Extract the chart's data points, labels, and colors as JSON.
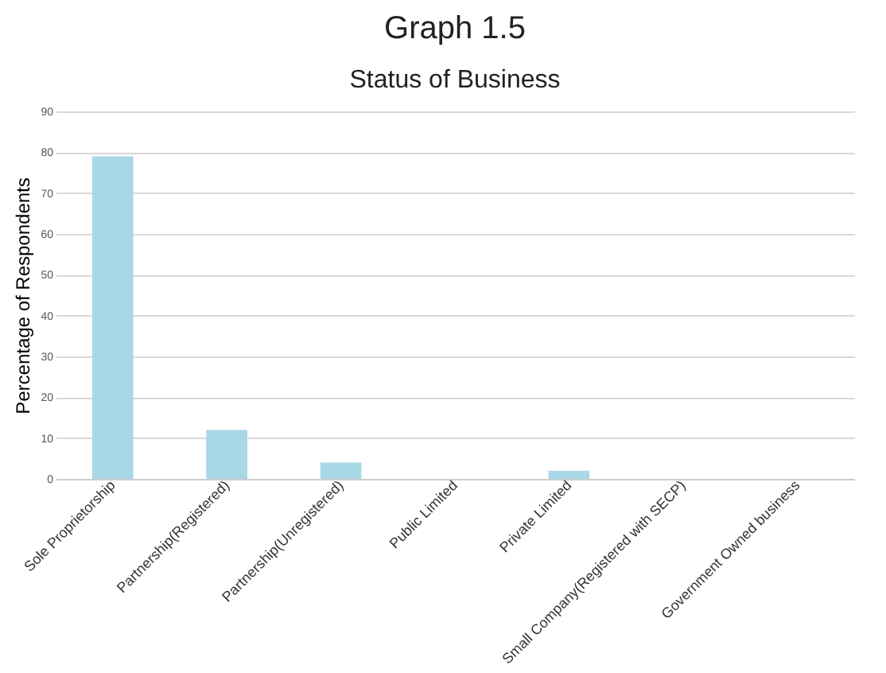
{
  "chart_data": {
    "type": "bar",
    "title": "Graph 1.5",
    "subtitle": "Status of Business",
    "ylabel": "Percentage of Respondents",
    "categories": [
      "Sole Proprietorship",
      "Partnership(Registered)",
      "Partnership(Unregistered)",
      "Public Limited",
      "Private Limited",
      "Small Company(Registered with SECP)",
      "Government Owned business"
    ],
    "values": [
      79,
      12,
      4,
      0,
      2,
      0,
      0
    ],
    "color": "#a8d8e6",
    "ylim": [
      0,
      90
    ],
    "yticks": [
      0,
      10,
      20,
      30,
      40,
      50,
      60,
      70,
      80,
      90
    ],
    "grid": true
  }
}
